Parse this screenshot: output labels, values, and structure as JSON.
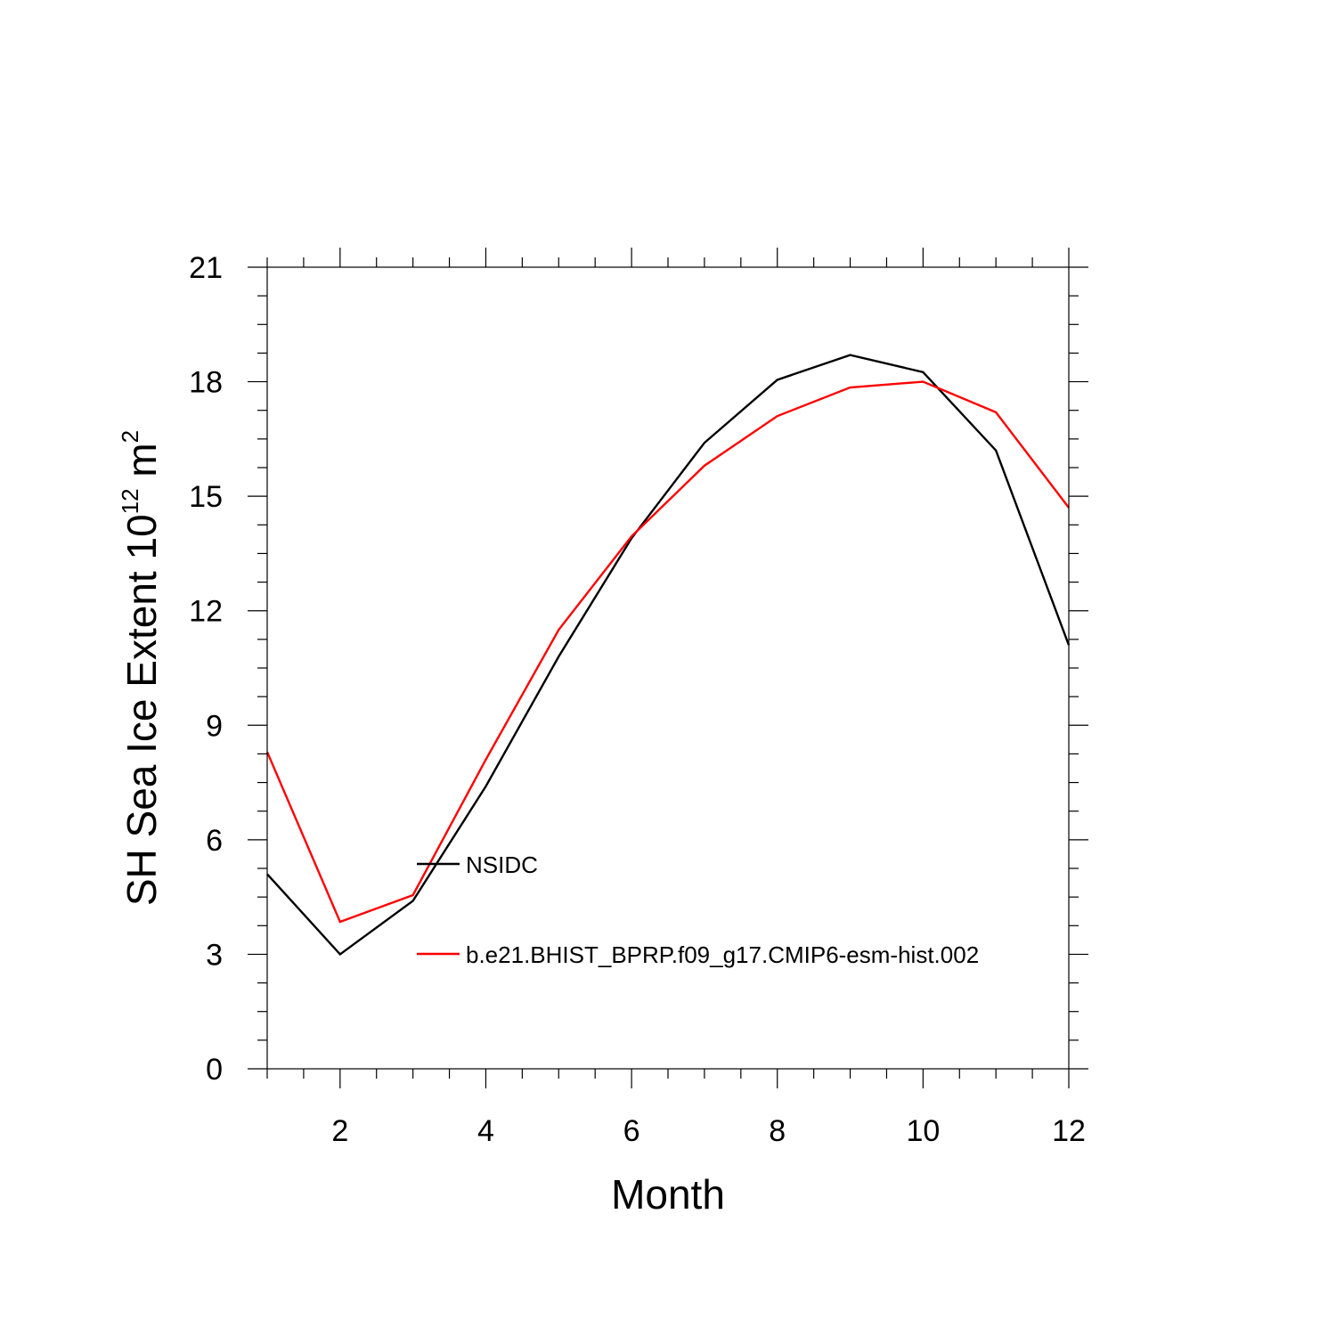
{
  "chart_data": {
    "type": "line",
    "xlabel": "Month",
    "ylabel": {
      "base": "SH Sea Ice Extent 10",
      "exp1": "12",
      "unit": " m",
      "exp2": "2"
    },
    "xlim": [
      1,
      12
    ],
    "ylim": [
      0,
      21
    ],
    "xticks": [
      2,
      4,
      6,
      8,
      10,
      12
    ],
    "xtick_labels": [
      "2",
      "4",
      "6",
      "8",
      "10",
      "12"
    ],
    "yticks": [
      0,
      3,
      6,
      9,
      12,
      15,
      18,
      21
    ],
    "ytick_labels": [
      "0",
      "3",
      "6",
      "9",
      "12",
      "15",
      "18",
      "21"
    ],
    "grid": false,
    "legend_position": "center",
    "x": [
      1,
      2,
      3,
      4,
      5,
      6,
      7,
      8,
      9,
      10,
      11,
      12
    ],
    "series": [
      {
        "name": "NSIDC",
        "color": "#000000",
        "values": [
          5.1,
          3.0,
          4.4,
          7.4,
          10.8,
          13.9,
          16.4,
          18.05,
          18.7,
          18.25,
          16.2,
          11.1
        ]
      },
      {
        "name": "b.e21.BHIST_BPRP.f09_g17.CMIP6-esm-hist.002",
        "color": "#ff0000",
        "values": [
          8.3,
          3.85,
          4.55,
          8.1,
          11.5,
          13.95,
          15.8,
          17.1,
          17.85,
          18.0,
          17.2,
          14.7
        ]
      }
    ]
  }
}
